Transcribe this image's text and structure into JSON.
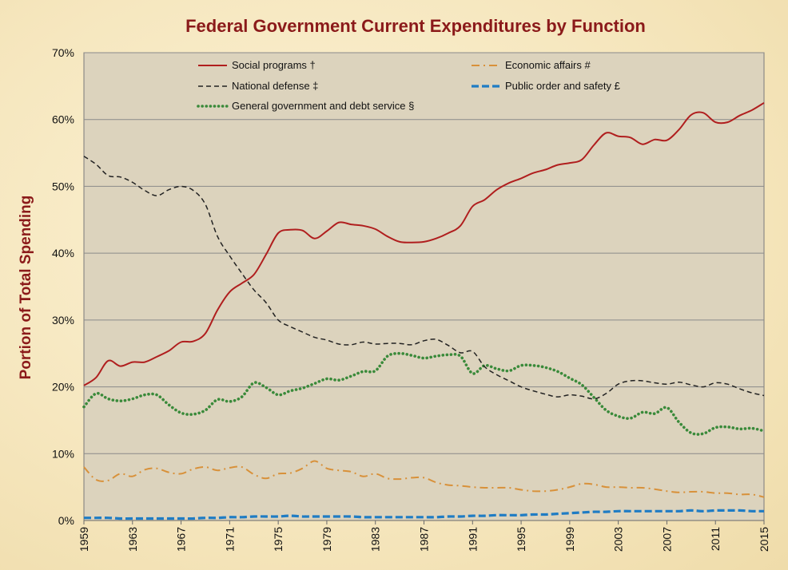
{
  "chart_data": {
    "type": "line",
    "title": "Federal Government Current Expenditures by Function",
    "xlabel": "",
    "ylabel": "Portion of Total Spending",
    "xlim": [
      1959,
      2015
    ],
    "ylim": [
      0,
      70
    ],
    "y_ticks": [
      0,
      10,
      20,
      30,
      40,
      50,
      60,
      70
    ],
    "y_tick_labels": [
      "0%",
      "10%",
      "20%",
      "30%",
      "40%",
      "50%",
      "60%",
      "70%"
    ],
    "x_ticks": [
      1959,
      1963,
      1967,
      1971,
      1975,
      1979,
      1983,
      1987,
      1991,
      1995,
      1999,
      2003,
      2007,
      2011,
      2015
    ],
    "x_tick_labels": [
      "1959",
      "1963",
      "1967",
      "1971",
      "1975",
      "1979",
      "1983",
      "1987",
      "1991",
      "1995",
      "1999",
      "2003",
      "2007",
      "2011",
      "2015"
    ],
    "grid": true,
    "legend_position": "top",
    "x": [
      1959,
      1960,
      1961,
      1962,
      1963,
      1964,
      1965,
      1966,
      1967,
      1968,
      1969,
      1970,
      1971,
      1972,
      1973,
      1974,
      1975,
      1976,
      1977,
      1978,
      1979,
      1980,
      1981,
      1982,
      1983,
      1984,
      1985,
      1986,
      1987,
      1988,
      1989,
      1990,
      1991,
      1992,
      1993,
      1994,
      1995,
      1996,
      1997,
      1998,
      1999,
      2000,
      2001,
      2002,
      2003,
      2004,
      2005,
      2006,
      2007,
      2008,
      2009,
      2010,
      2011,
      2012,
      2013,
      2014,
      2015
    ],
    "series": [
      {
        "name": "Social programs †",
        "color": "#b01e1e",
        "dash": "solid",
        "values": [
          20.2,
          21.4,
          23.9,
          23.1,
          23.7,
          23.7,
          24.5,
          25.4,
          26.7,
          26.8,
          28.0,
          31.5,
          34.2,
          35.5,
          36.8,
          39.8,
          43.0,
          43.5,
          43.4,
          42.2,
          43.3,
          44.6,
          44.3,
          44.1,
          43.6,
          42.5,
          41.7,
          41.6,
          41.7,
          42.2,
          43.0,
          44.1,
          47.0,
          48.0,
          49.5,
          50.5,
          51.2,
          52.0,
          52.5,
          53.2,
          53.5,
          54.0,
          56.2,
          58.0,
          57.5,
          57.3,
          56.3,
          57.0,
          56.9,
          58.5,
          60.7,
          61.0,
          59.6,
          59.6,
          60.6,
          61.4,
          62.5
        ]
      },
      {
        "name": "National defense ‡",
        "color": "#222222",
        "dash": "dashed",
        "values": [
          54.5,
          53.3,
          51.6,
          51.4,
          50.6,
          49.4,
          48.6,
          49.5,
          50.0,
          49.4,
          47.3,
          42.5,
          39.6,
          37.0,
          34.5,
          32.6,
          30.0,
          29.0,
          28.2,
          27.4,
          27.0,
          26.4,
          26.3,
          26.7,
          26.4,
          26.5,
          26.5,
          26.3,
          26.9,
          27.1,
          26.2,
          25.1,
          25.3,
          23.0,
          21.8,
          20.9,
          20.0,
          19.4,
          18.9,
          18.5,
          18.8,
          18.6,
          18.2,
          19.0,
          20.4,
          20.9,
          20.9,
          20.6,
          20.4,
          20.7,
          20.3,
          20.0,
          20.6,
          20.4,
          19.7,
          19.1,
          18.7
        ]
      },
      {
        "name": "General government and debt service §",
        "color": "#3a8a3a",
        "dash": "dotted",
        "values": [
          17.0,
          19.0,
          18.2,
          17.9,
          18.2,
          18.8,
          18.8,
          17.3,
          16.1,
          15.9,
          16.5,
          18.1,
          17.8,
          18.5,
          20.6,
          19.9,
          18.8,
          19.4,
          19.8,
          20.5,
          21.2,
          21.0,
          21.6,
          22.3,
          22.4,
          24.6,
          25.0,
          24.7,
          24.3,
          24.6,
          24.8,
          24.6,
          22.0,
          23.2,
          22.7,
          22.4,
          23.2,
          23.2,
          22.9,
          22.3,
          21.3,
          20.3,
          18.4,
          16.5,
          15.6,
          15.3,
          16.2,
          16.0,
          16.9,
          14.7,
          13.1,
          13.0,
          13.9,
          14.0,
          13.7,
          13.8,
          13.4
        ]
      },
      {
        "name": "Economic affairs #",
        "color": "#d8913a",
        "dash": "dashdot",
        "values": [
          8.0,
          6.1,
          6.0,
          7.0,
          6.6,
          7.6,
          7.8,
          7.2,
          7.0,
          7.7,
          8.0,
          7.5,
          7.9,
          8.0,
          6.9,
          6.3,
          7.0,
          7.1,
          7.8,
          8.9,
          7.8,
          7.5,
          7.3,
          6.6,
          7.0,
          6.3,
          6.2,
          6.4,
          6.4,
          5.7,
          5.3,
          5.2,
          5.0,
          4.9,
          4.9,
          4.9,
          4.6,
          4.4,
          4.4,
          4.6,
          5.0,
          5.5,
          5.4,
          5.0,
          5.0,
          4.9,
          4.9,
          4.7,
          4.4,
          4.2,
          4.3,
          4.3,
          4.1,
          4.1,
          3.9,
          3.9,
          3.5
        ]
      },
      {
        "name": "Public order and safety £",
        "color": "#1f7cc4",
        "dash": "longdash",
        "values": [
          0.4,
          0.4,
          0.4,
          0.3,
          0.3,
          0.3,
          0.3,
          0.3,
          0.3,
          0.3,
          0.4,
          0.4,
          0.5,
          0.5,
          0.6,
          0.6,
          0.6,
          0.7,
          0.6,
          0.6,
          0.6,
          0.6,
          0.6,
          0.5,
          0.5,
          0.5,
          0.5,
          0.5,
          0.5,
          0.5,
          0.6,
          0.6,
          0.7,
          0.7,
          0.8,
          0.8,
          0.8,
          0.9,
          0.9,
          1.0,
          1.1,
          1.2,
          1.3,
          1.3,
          1.4,
          1.4,
          1.4,
          1.4,
          1.4,
          1.4,
          1.5,
          1.4,
          1.5,
          1.5,
          1.5,
          1.4,
          1.4
        ]
      }
    ],
    "legend_order": [
      0,
      3,
      1,
      4,
      2
    ]
  }
}
